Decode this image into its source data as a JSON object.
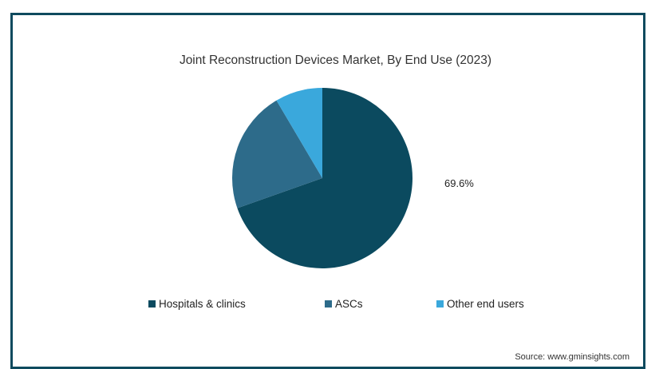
{
  "chart_data": {
    "type": "pie",
    "title": "Joint Reconstruction Devices Market, By End Use (2023)",
    "categories": [
      "Hospitals & clinics",
      "ASCs",
      "Other end users"
    ],
    "values": [
      69.6,
      21.9,
      8.5
    ],
    "colors": [
      "#0b4a5f",
      "#2d6b8a",
      "#3aa8dc"
    ],
    "data_labels": [
      "69.6%"
    ],
    "legend_position": "bottom"
  },
  "source": "Source: www.gminsights.com"
}
